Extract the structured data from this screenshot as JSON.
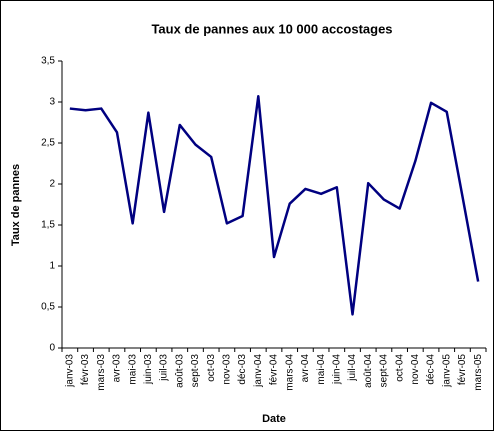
{
  "chart_data": {
    "type": "line",
    "title": "Taux de pannes aux 10 000 accostages",
    "xlabel": "Date",
    "ylabel": "Taux de pannes",
    "categories": [
      "janv-03",
      "févr-03",
      "mars-03",
      "avr-03",
      "mai-03",
      "juin-03",
      "juil-03",
      "août-03",
      "sept-03",
      "oct-03",
      "nov-03",
      "déc-03",
      "janv-04",
      "févr-04",
      "mars-04",
      "avr-04",
      "mai-04",
      "juin-04",
      "juil-04",
      "août-04",
      "sept-04",
      "oct-04",
      "nov-04",
      "déc-04",
      "janv-05",
      "févr-05",
      "mars-05"
    ],
    "values": [
      2.92,
      2.9,
      2.92,
      2.63,
      1.52,
      2.87,
      1.66,
      2.72,
      2.48,
      2.33,
      1.52,
      1.61,
      3.07,
      1.11,
      1.76,
      1.94,
      1.88,
      1.96,
      0.41,
      2.01,
      1.81,
      1.7,
      2.28,
      2.99,
      2.88,
      1.85,
      0.81
    ],
    "color": "#000080",
    "ylim": [
      0,
      3.5
    ],
    "yticks": [
      0,
      {
        "value": 0.5,
        "label": "0,5"
      },
      1,
      {
        "value": 1.5,
        "label": "1,5"
      },
      2,
      {
        "value": 2.5,
        "label": "2,5"
      },
      3,
      {
        "value": 3.5,
        "label": "3,5"
      }
    ],
    "grid": false
  }
}
